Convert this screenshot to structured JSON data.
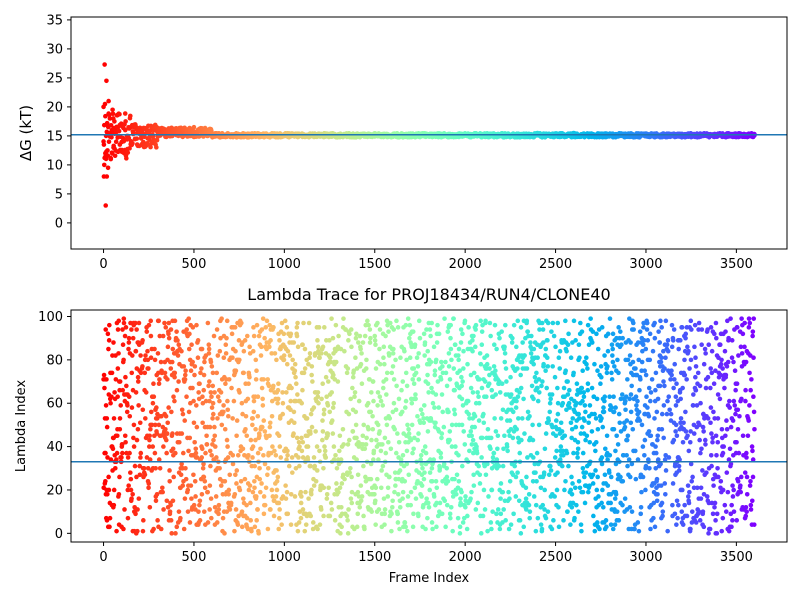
{
  "chart_data": [
    {
      "type": "scatter",
      "title": "",
      "xlabel": "",
      "ylabel": "ΔG (kT)",
      "xlim": [
        -180,
        3780
      ],
      "ylim": [
        -4.5,
        35.5
      ],
      "xticks": [
        0,
        500,
        1000,
        1500,
        2000,
        2500,
        3000,
        3500
      ],
      "yticks": [
        0,
        5,
        10,
        15,
        20,
        25,
        30,
        35
      ],
      "colormap": "rainbow",
      "reference_line": {
        "y": 15.2,
        "color": "#1f77b4"
      },
      "series": [
        {
          "description_points": [
            [
              0,
              20.0
            ],
            [
              2,
              8.0
            ],
            [
              4,
              10.0
            ],
            [
              6,
              27.3
            ],
            [
              8,
              20.5
            ],
            [
              10,
              12.0
            ],
            [
              12,
              3.0
            ],
            [
              14,
              15.0
            ],
            [
              16,
              24.5
            ],
            [
              18,
              8.0
            ],
            [
              20,
              17.0
            ],
            [
              22,
              12.5
            ],
            [
              25,
              9.5
            ],
            [
              28,
              21.0
            ],
            [
              30,
              14.0
            ],
            [
              35,
              18.0
            ],
            [
              40,
              11.0
            ],
            [
              45,
              16.0
            ],
            [
              50,
              19.5
            ],
            [
              55,
              13.0
            ],
            [
              60,
              17.5
            ],
            [
              70,
              14.0
            ],
            [
              80,
              16.5
            ],
            [
              90,
              13.5
            ],
            [
              100,
              17.0
            ],
            [
              110,
              14.5
            ],
            [
              120,
              16.0
            ],
            [
              130,
              15.0
            ],
            [
              150,
              16.5
            ],
            [
              175,
              14.5
            ],
            [
              200,
              16.0
            ],
            [
              225,
              13.5
            ],
            [
              250,
              15.5
            ],
            [
              275,
              14.0
            ],
            [
              300,
              16.0
            ],
            [
              350,
              15.0
            ],
            [
              400,
              16.0
            ],
            [
              450,
              15.5
            ],
            [
              500,
              16.5
            ],
            [
              550,
              16.0
            ],
            [
              600,
              15.0
            ],
            [
              700,
              15.0
            ],
            [
              800,
              15.2
            ],
            [
              900,
              15.4
            ],
            [
              1000,
              15.3
            ],
            [
              1200,
              15.2
            ],
            [
              1400,
              15.1
            ],
            [
              1600,
              15.0
            ],
            [
              1800,
              15.3
            ],
            [
              2000,
              15.4
            ],
            [
              2200,
              15.4
            ],
            [
              2400,
              15.5
            ],
            [
              2600,
              15.5
            ],
            [
              2800,
              15.4
            ],
            [
              3000,
              15.4
            ],
            [
              3200,
              15.3
            ],
            [
              3400,
              15.3
            ],
            [
              3600,
              15.3
            ]
          ]
        }
      ]
    },
    {
      "type": "scatter",
      "title": "Lambda Trace for PROJ18434/RUN4/CLONE40",
      "xlabel": "Frame Index",
      "ylabel": "Lambda Index",
      "xlim": [
        -180,
        3780
      ],
      "ylim": [
        -4,
        103
      ],
      "xticks": [
        0,
        500,
        1000,
        1500,
        2000,
        2500,
        3000,
        3500
      ],
      "yticks": [
        0,
        20,
        40,
        60,
        80,
        100
      ],
      "colormap": "rainbow",
      "reference_line": {
        "y": 33,
        "color": "#1f77b4"
      },
      "frame_range": [
        0,
        3600
      ],
      "lambda_range": [
        0,
        99
      ]
    }
  ]
}
